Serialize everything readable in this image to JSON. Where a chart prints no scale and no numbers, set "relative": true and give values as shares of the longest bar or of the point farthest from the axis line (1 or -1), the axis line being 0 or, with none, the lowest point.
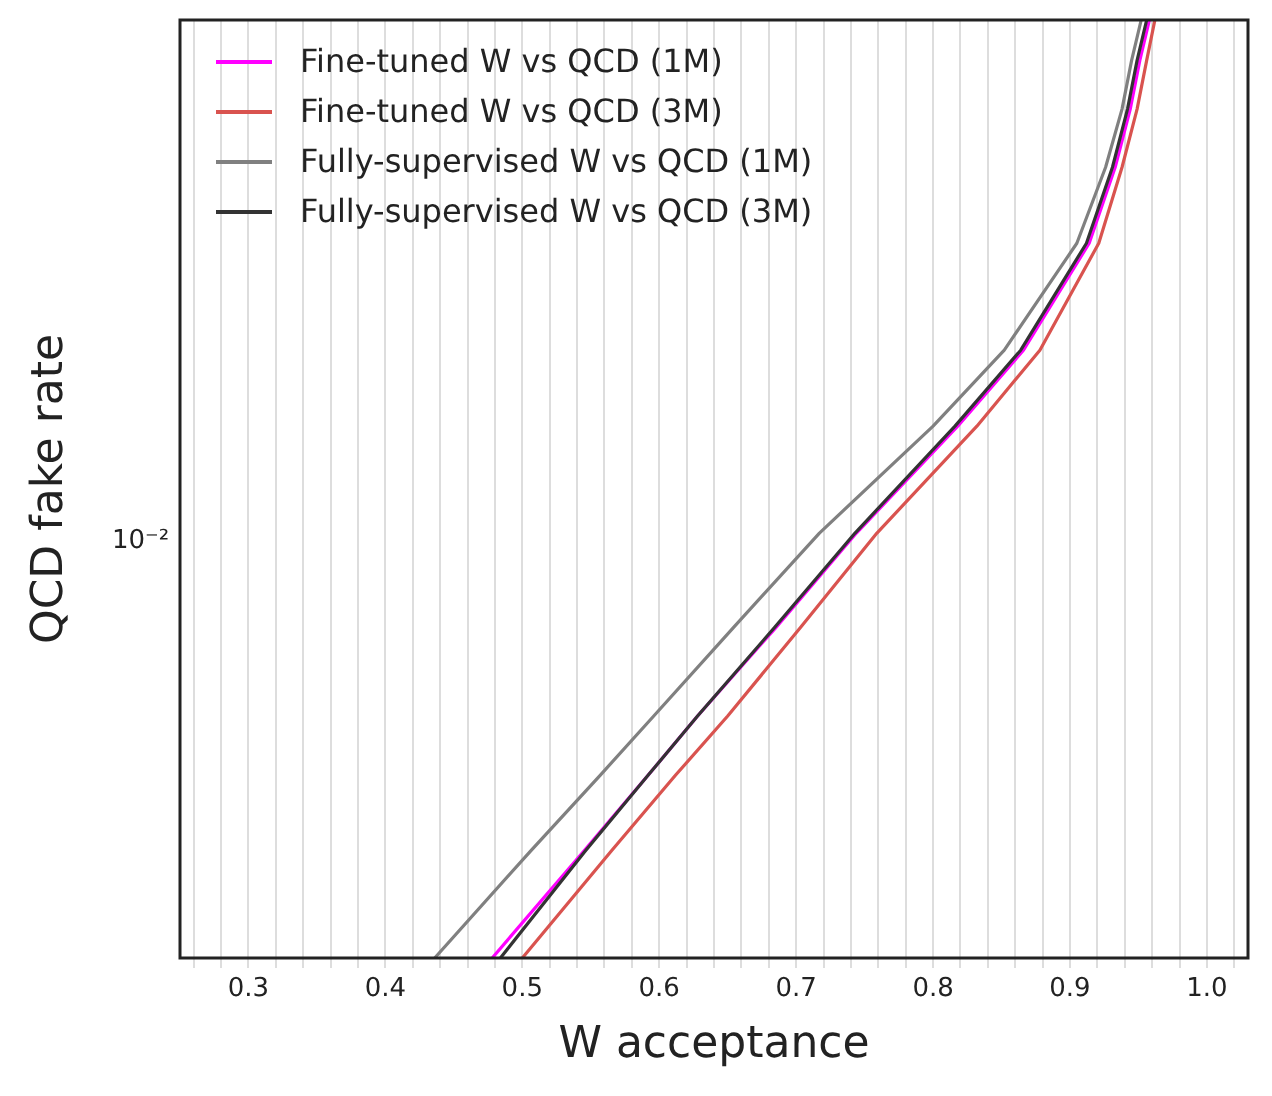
{
  "chart_data": {
    "type": "line",
    "xlabel": "W acceptance",
    "ylabel": "QCD fake rate",
    "relative": true,
    "grid": "x",
    "legend": "top left",
    "annotations": [
      "10⁻²"
    ],
    "xlim": [
      0.25,
      1.03
    ],
    "xticks": [
      {
        "value": 0.26,
        "label": null
      },
      {
        "value": 0.28,
        "label": null
      },
      0.3,
      {
        "value": 0.32,
        "label": null
      },
      {
        "value": 0.34,
        "label": null
      },
      {
        "value": 0.36,
        "label": null
      },
      {
        "value": 0.38,
        "label": null
      },
      0.4,
      {
        "value": 0.42,
        "label": null
      },
      {
        "value": 0.44,
        "label": null
      },
      {
        "value": 0.46,
        "label": null
      },
      {
        "value": 0.48,
        "label": null
      },
      0.5,
      {
        "value": 0.52,
        "label": null
      },
      {
        "value": 0.54,
        "label": null
      },
      {
        "value": 0.56,
        "label": null
      },
      {
        "value": 0.58,
        "label": null
      },
      0.6,
      {
        "value": 0.62,
        "label": null
      },
      {
        "value": 0.64,
        "label": null
      },
      {
        "value": 0.66,
        "label": null
      },
      {
        "value": 0.68,
        "label": null
      },
      0.7,
      {
        "value": 0.72,
        "label": null
      },
      {
        "value": 0.74,
        "label": null
      },
      {
        "value": 0.76,
        "label": null
      },
      {
        "value": 0.78,
        "label": null
      },
      0.8,
      {
        "value": 0.82,
        "label": null
      },
      {
        "value": 0.84,
        "label": null
      },
      {
        "value": 0.86,
        "label": null
      },
      {
        "value": 0.88,
        "label": null
      },
      0.9,
      {
        "value": 0.92,
        "label": null
      },
      {
        "value": 0.94,
        "label": null
      },
      {
        "value": 0.96,
        "label": null
      },
      {
        "value": 0.98,
        "label": null
      },
      {
        "value": 1,
        "label": "1.0"
      },
      {
        "value": 1.02,
        "label": null
      }
    ],
    "series": [
      {
        "name": "Fine-tuned W vs QCD (1M)",
        "color": "#ff00ff",
        "x": [
          0.478,
          0.545,
          0.592,
          0.628,
          0.685,
          0.744,
          0.818,
          0.866,
          0.914,
          0.933,
          0.944,
          0.951,
          0.958
        ],
        "values": [
          0,
          0.114,
          0.195,
          0.258,
          0.352,
          0.453,
          0.567,
          0.648,
          0.762,
          0.843,
          0.905,
          0.957,
          1
        ]
      },
      {
        "name": "Fine-tuned W vs QCD (3M)",
        "color": "#d9534f",
        "x": [
          0.5,
          0.565,
          0.612,
          0.65,
          0.703,
          0.759,
          0.832,
          0.878,
          0.921,
          0.938,
          0.949,
          0.956,
          0.962
        ],
        "values": [
          0,
          0.114,
          0.195,
          0.258,
          0.352,
          0.453,
          0.567,
          0.648,
          0.762,
          0.843,
          0.905,
          0.957,
          1
        ]
      },
      {
        "name": "Fully-supervised W vs QCD (1M)",
        "color": "#808080",
        "x": [
          0.436,
          0.506,
          0.557,
          0.596,
          0.654,
          0.717,
          0.8,
          0.852,
          0.905,
          0.926,
          0.938,
          0.945,
          0.952
        ],
        "values": [
          0,
          0.114,
          0.195,
          0.258,
          0.352,
          0.453,
          0.567,
          0.648,
          0.762,
          0.843,
          0.905,
          0.957,
          1
        ]
      },
      {
        "name": "Fully-supervised W vs QCD (3M)",
        "color": "#333333",
        "x": [
          0.484,
          0.546,
          0.592,
          0.628,
          0.684,
          0.743,
          0.816,
          0.864,
          0.912,
          0.931,
          0.942,
          0.949,
          0.956
        ],
        "values": [
          0,
          0.114,
          0.195,
          0.258,
          0.352,
          0.453,
          0.567,
          0.648,
          0.762,
          0.843,
          0.905,
          0.957,
          1
        ]
      }
    ]
  }
}
